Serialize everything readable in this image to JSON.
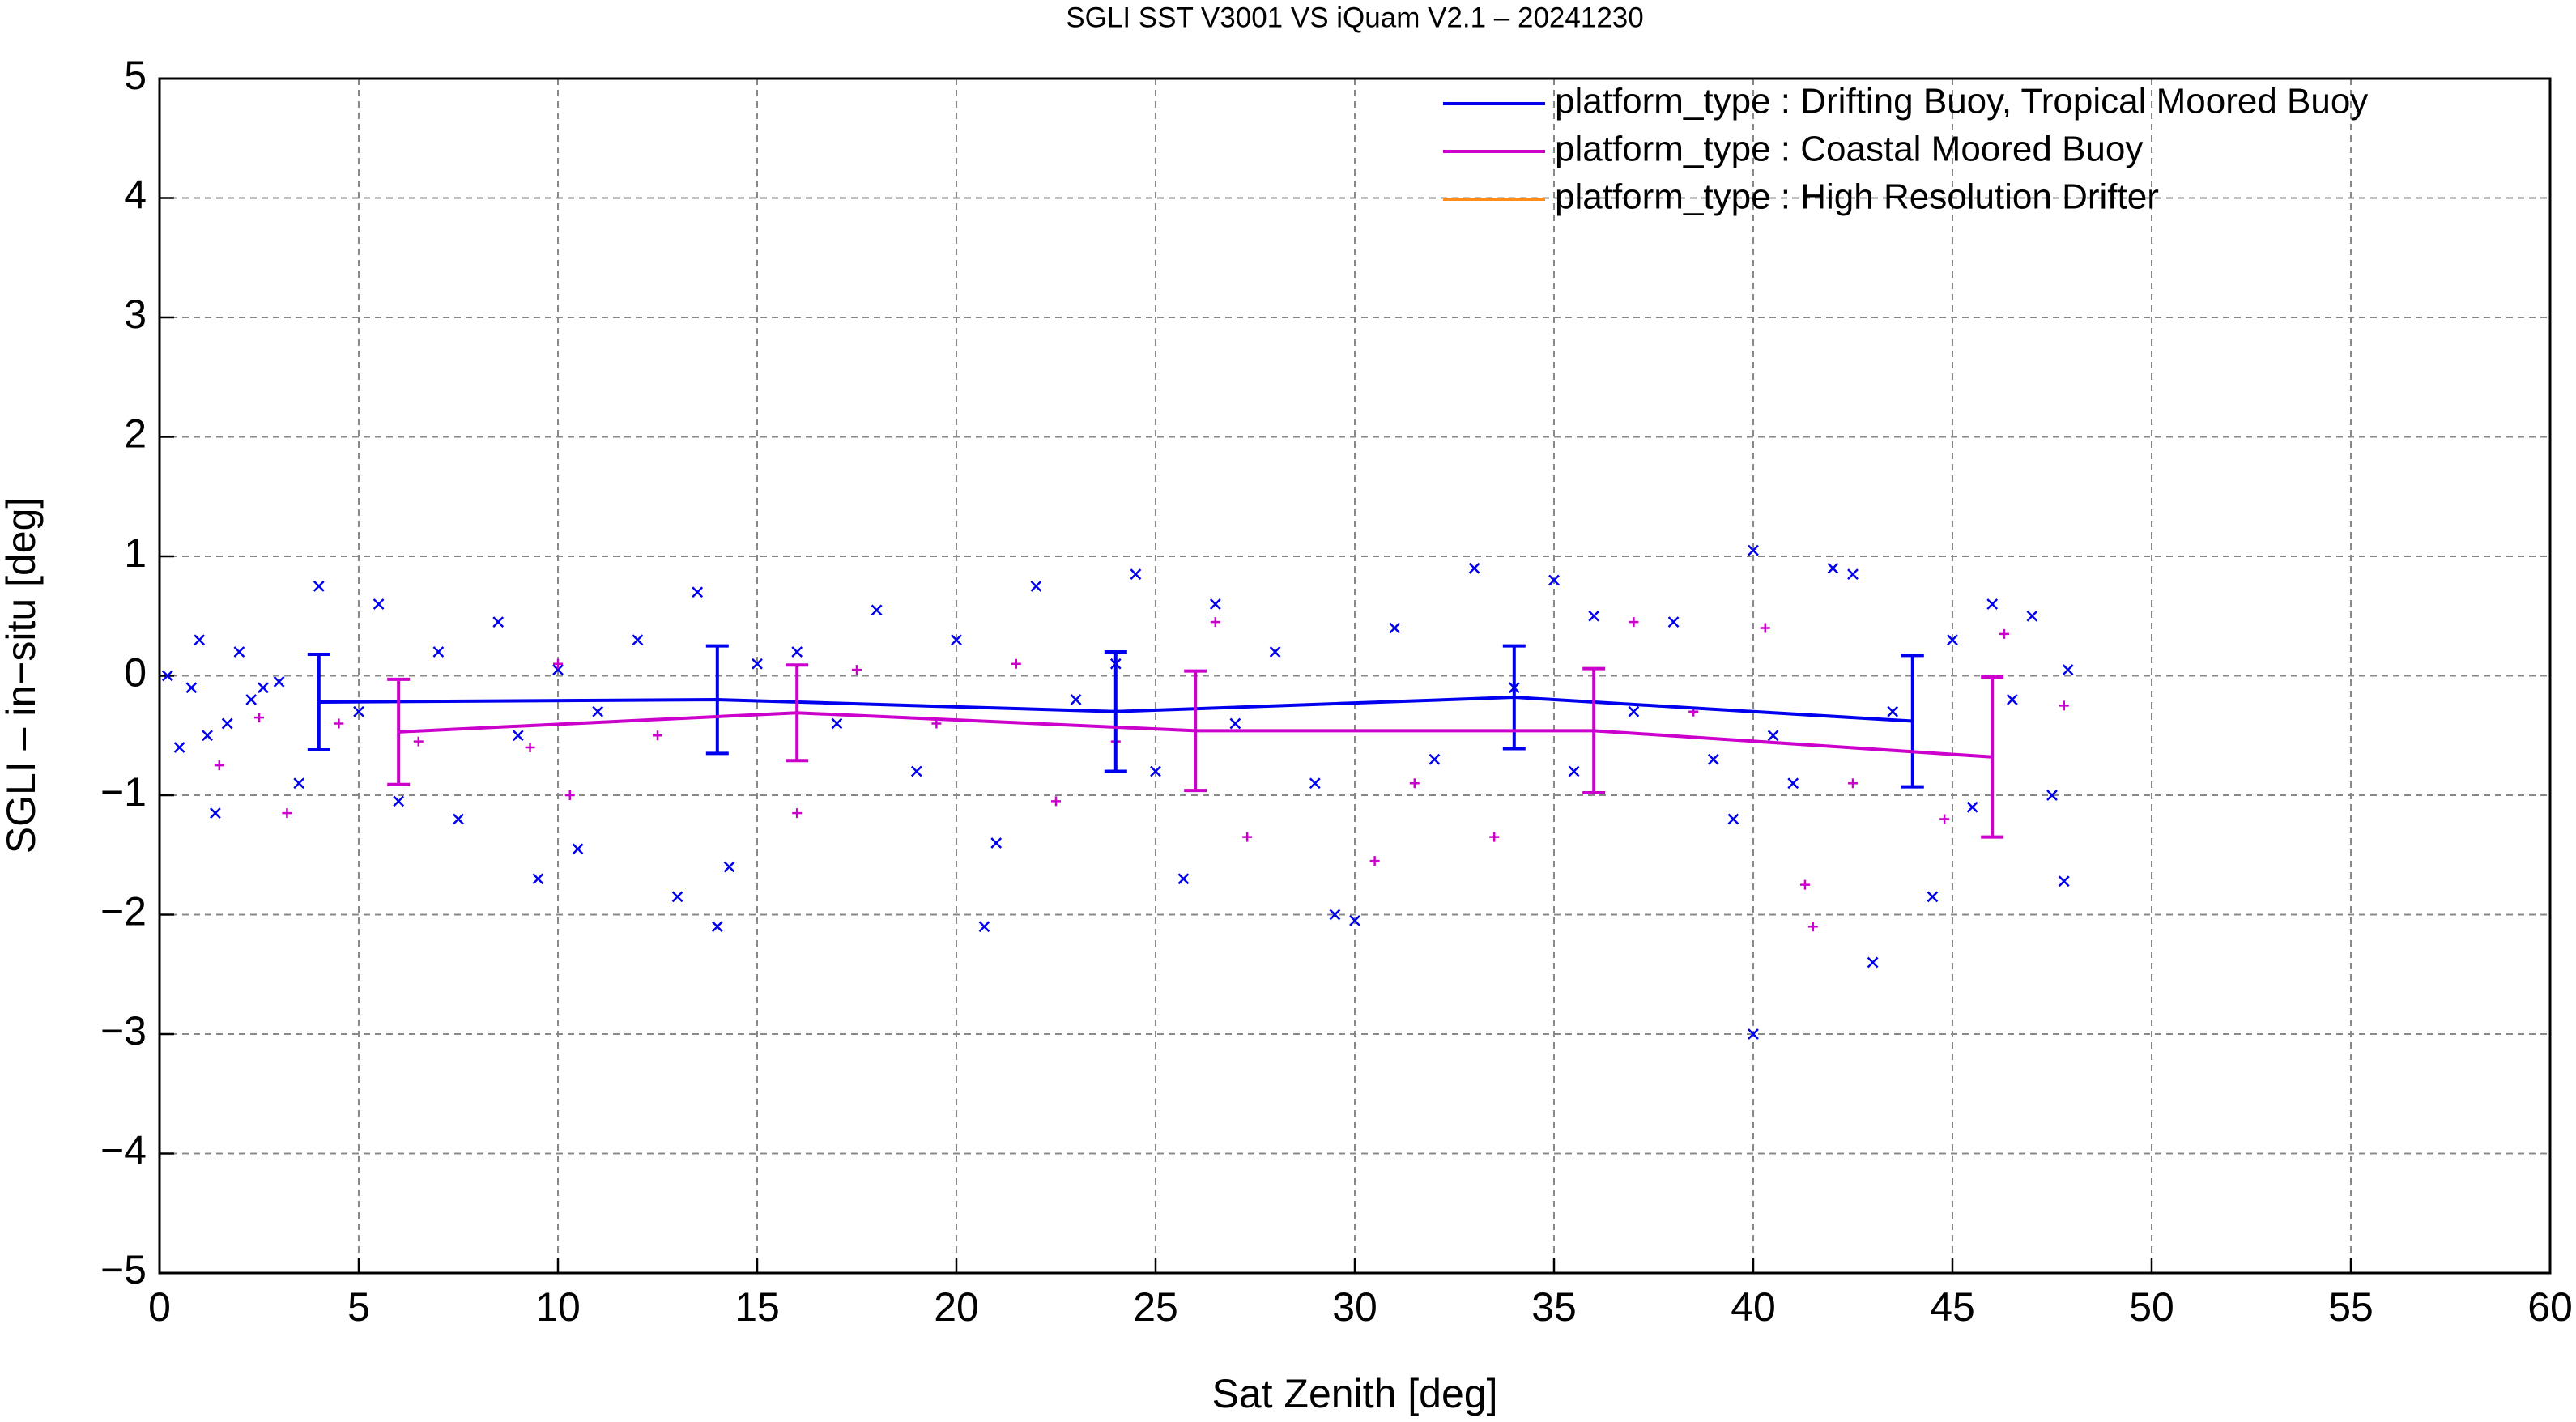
{
  "chart_data": {
    "type": "scatter",
    "title": "SGLI SST V3001 VS iQuam V2.1  – 20241230",
    "x_label": "Sat Zenith [deg]",
    "y_label": "SGLI – in−situ [deg]",
    "xlim": [
      0,
      60
    ],
    "ylim": [
      -5,
      5
    ],
    "xticks": [
      0,
      5,
      10,
      15,
      20,
      25,
      30,
      35,
      40,
      45,
      50,
      55,
      60
    ],
    "yticks": [
      {
        "value": -5,
        "label": "−5"
      },
      {
        "value": -4,
        "label": "−4"
      },
      {
        "value": -3,
        "label": "−3"
      },
      {
        "value": -2,
        "label": "−2"
      },
      {
        "value": -1,
        "label": "−1"
      },
      0,
      1,
      2,
      3,
      4,
      5
    ],
    "grid": true,
    "legend": "top-right",
    "series": [
      {
        "name": "platform_type : Drifting Buoy, Tropical Moored Buoy",
        "color": "#0000ee",
        "marker": "x",
        "points_x": [
          0.2,
          0.5,
          0.8,
          1,
          1.2,
          1.4,
          1.7,
          2,
          2.3,
          2.6,
          3,
          3.5,
          4,
          5,
          5.5,
          6,
          7,
          7.5,
          8.5,
          9,
          9.5,
          10,
          10.5,
          11,
          12,
          13,
          13.5,
          14,
          14.3,
          15,
          16,
          17,
          18,
          19,
          20,
          20.7,
          21,
          22,
          23,
          24,
          24.5,
          25,
          25.7,
          26.5,
          27,
          28,
          29,
          29.5,
          30,
          31,
          32,
          33,
          34,
          35,
          35.5,
          36,
          37,
          38,
          39,
          39.5,
          40,
          40,
          40.5,
          41,
          42,
          42.5,
          43,
          43.5,
          44.5,
          45,
          45.5,
          46,
          46.5,
          47,
          47.5,
          47.8,
          47.9
        ],
        "points_y": [
          0,
          -0.6,
          -0.1,
          0.3,
          -0.5,
          -1.15,
          -0.4,
          0.2,
          -0.2,
          -0.1,
          -0.05,
          -0.9,
          0.75,
          -0.3,
          0.6,
          -1.05,
          0.2,
          -1.2,
          0.45,
          -0.5,
          -1.7,
          0.05,
          -1.45,
          -0.3,
          0.3,
          -1.85,
          0.7,
          -2.1,
          -1.6,
          0.1,
          0.2,
          -0.4,
          0.55,
          -0.8,
          0.3,
          -2.1,
          -1.4,
          0.75,
          -0.2,
          0.1,
          0.85,
          -0.8,
          -1.7,
          0.6,
          -0.4,
          0.2,
          -0.9,
          -2.0,
          -2.05,
          0.4,
          -0.7,
          0.9,
          -0.1,
          0.8,
          -0.8,
          0.5,
          -0.3,
          0.45,
          -0.7,
          -1.2,
          1.05,
          -3.0,
          -0.5,
          -0.9,
          0.9,
          0.85,
          -2.4,
          -0.3,
          -1.85,
          0.3,
          -1.1,
          0.6,
          -0.2,
          0.5,
          -1.0,
          -1.72,
          0.05
        ],
        "x": [
          4,
          14,
          24,
          34,
          44
        ],
        "values": [
          -0.22,
          -0.2,
          -0.3,
          -0.18,
          -0.38
        ],
        "errors": [
          0.4,
          0.45,
          0.5,
          0.43,
          0.55
        ]
      },
      {
        "name": "platform_type : Coastal Moored Buoy",
        "color": "#cc00cc",
        "marker": "+",
        "points_x": [
          1.5,
          2.5,
          3.2,
          4.5,
          6.5,
          9.3,
          10,
          10.3,
          12.5,
          16,
          17.5,
          19.5,
          21.5,
          22.5,
          24,
          26.5,
          27.3,
          30.5,
          31.5,
          33.5,
          37,
          38.5,
          40.3,
          41.3,
          41.5,
          42.5,
          44.8,
          46.3,
          47.8
        ],
        "points_y": [
          -0.75,
          -0.35,
          -1.15,
          -0.4,
          -0.55,
          -0.6,
          0.1,
          -1.0,
          -0.5,
          -1.15,
          0.05,
          -0.4,
          0.1,
          -1.05,
          -0.55,
          0.45,
          -1.35,
          -1.55,
          -0.9,
          -1.35,
          0.45,
          -0.3,
          0.4,
          -1.75,
          -2.1,
          -0.9,
          -1.2,
          0.35,
          -0.25
        ],
        "x": [
          6,
          16,
          26,
          36,
          46
        ],
        "values": [
          -0.47,
          -0.31,
          -0.46,
          -0.46,
          -0.68
        ],
        "errors": [
          0.44,
          0.4,
          0.5,
          0.52,
          0.67
        ]
      },
      {
        "name": "platform_type : High Resolution Drifter",
        "color": "#ff8c1a"
      }
    ]
  }
}
